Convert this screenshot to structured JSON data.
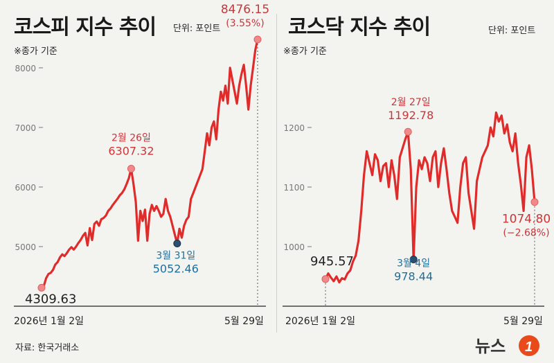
{
  "left": {
    "title": "코스피 지수 추이",
    "unit": "단위: 포인트",
    "note": "※종가 기준",
    "x_start_label": "2026년 1월 2일",
    "x_end_label": "5월 29일"
  },
  "right": {
    "title": "코스닥 지수 추이",
    "unit": "단위: 포인트",
    "note": "※종가 기준",
    "x_start_label": "2026년 1월 2일",
    "x_end_label": "5월 29일"
  },
  "source": "자료: 한국거래소",
  "logo_text": "뉴스1",
  "colors": {
    "line": "#e02b2b",
    "low": "#1f6f9a",
    "high": "#c9353a",
    "marker_low": "#2e4f72"
  },
  "chart_data": [
    {
      "type": "line",
      "title": "코스피 지수 추이",
      "unit": "단위: 포인트",
      "x_start": "2026년 1월 2일",
      "x_end": "5월 29일",
      "ylim": [
        4000,
        8600
      ],
      "yticks": [
        5000,
        6000,
        7000,
        8000
      ],
      "grid": false,
      "values": [
        4309.63,
        4340,
        4470,
        4540,
        4560,
        4610,
        4700,
        4740,
        4820,
        4870,
        4840,
        4890,
        4950,
        4990,
        4950,
        5000,
        5060,
        5110,
        5180,
        5230,
        5020,
        5310,
        5110,
        5380,
        5420,
        5350,
        5460,
        5480,
        5520,
        5600,
        5640,
        5700,
        5750,
        5800,
        5860,
        5900,
        5960,
        6050,
        6150,
        6307.32,
        6050,
        5750,
        5100,
        5600,
        5430,
        5620,
        5100,
        5550,
        5700,
        5600,
        5680,
        5600,
        5500,
        5550,
        5800,
        5600,
        5500,
        5350,
        5200,
        5052.46,
        5300,
        5150,
        5350,
        5450,
        5500,
        5800,
        5900,
        6000,
        6100,
        6200,
        6300,
        6600,
        6900,
        6700,
        7000,
        7100,
        6800,
        7300,
        7600,
        7450,
        7700,
        7400,
        8000,
        7800,
        7600,
        7400,
        7700,
        7900,
        8050,
        7700,
        7300,
        7700,
        8000,
        8300,
        8476.15
      ],
      "annotations": [
        {
          "label_date": "",
          "label_value": "4309.63",
          "index": 0,
          "type": "start"
        },
        {
          "label_date": "2월 26일",
          "label_value": "6307.32",
          "index": 39,
          "type": "high"
        },
        {
          "label_date": "3월 31일",
          "label_value": "5052.46",
          "index": 59,
          "type": "low"
        },
        {
          "label_date": "",
          "label_value": "8476.15",
          "sub": "(3.55%)",
          "index": 94,
          "type": "end"
        }
      ]
    },
    {
      "type": "line",
      "title": "코스닥 지수 추이",
      "unit": "단위: 포인트",
      "x_start": "2026년 1월 2일",
      "x_end": "5월 29일",
      "ylim": [
        900,
        1250
      ],
      "yticks": [
        1000,
        1100,
        1200
      ],
      "grid": false,
      "values": [
        945.57,
        955,
        948,
        942,
        950,
        940,
        947,
        945,
        955,
        960,
        975,
        985,
        1010,
        1060,
        1120,
        1160,
        1140,
        1120,
        1155,
        1145,
        1110,
        1135,
        1140,
        1100,
        1145,
        1120,
        1080,
        1150,
        1165,
        1180,
        1192.78,
        1130,
        978.44,
        1100,
        1145,
        1130,
        1150,
        1140,
        1110,
        1150,
        1160,
        1100,
        1140,
        1165,
        1130,
        1090,
        1060,
        1050,
        1040,
        1100,
        1140,
        1150,
        1090,
        1060,
        1030,
        1110,
        1130,
        1150,
        1160,
        1170,
        1200,
        1185,
        1225,
        1210,
        1220,
        1190,
        1205,
        1175,
        1160,
        1190,
        1140,
        1105,
        1060,
        1150,
        1170,
        1130,
        1074.8
      ],
      "annotations": [
        {
          "label_date": "",
          "label_value": "945.57",
          "index": 0,
          "type": "start"
        },
        {
          "label_date": "2월 27일",
          "label_value": "1192.78",
          "index": 30,
          "type": "high"
        },
        {
          "label_date": "3월 4일",
          "label_value": "978.44",
          "index": 32,
          "type": "low"
        },
        {
          "label_date": "",
          "label_value": "1074.80",
          "sub": "(−2.68%)",
          "index": 76,
          "type": "end"
        }
      ]
    }
  ]
}
